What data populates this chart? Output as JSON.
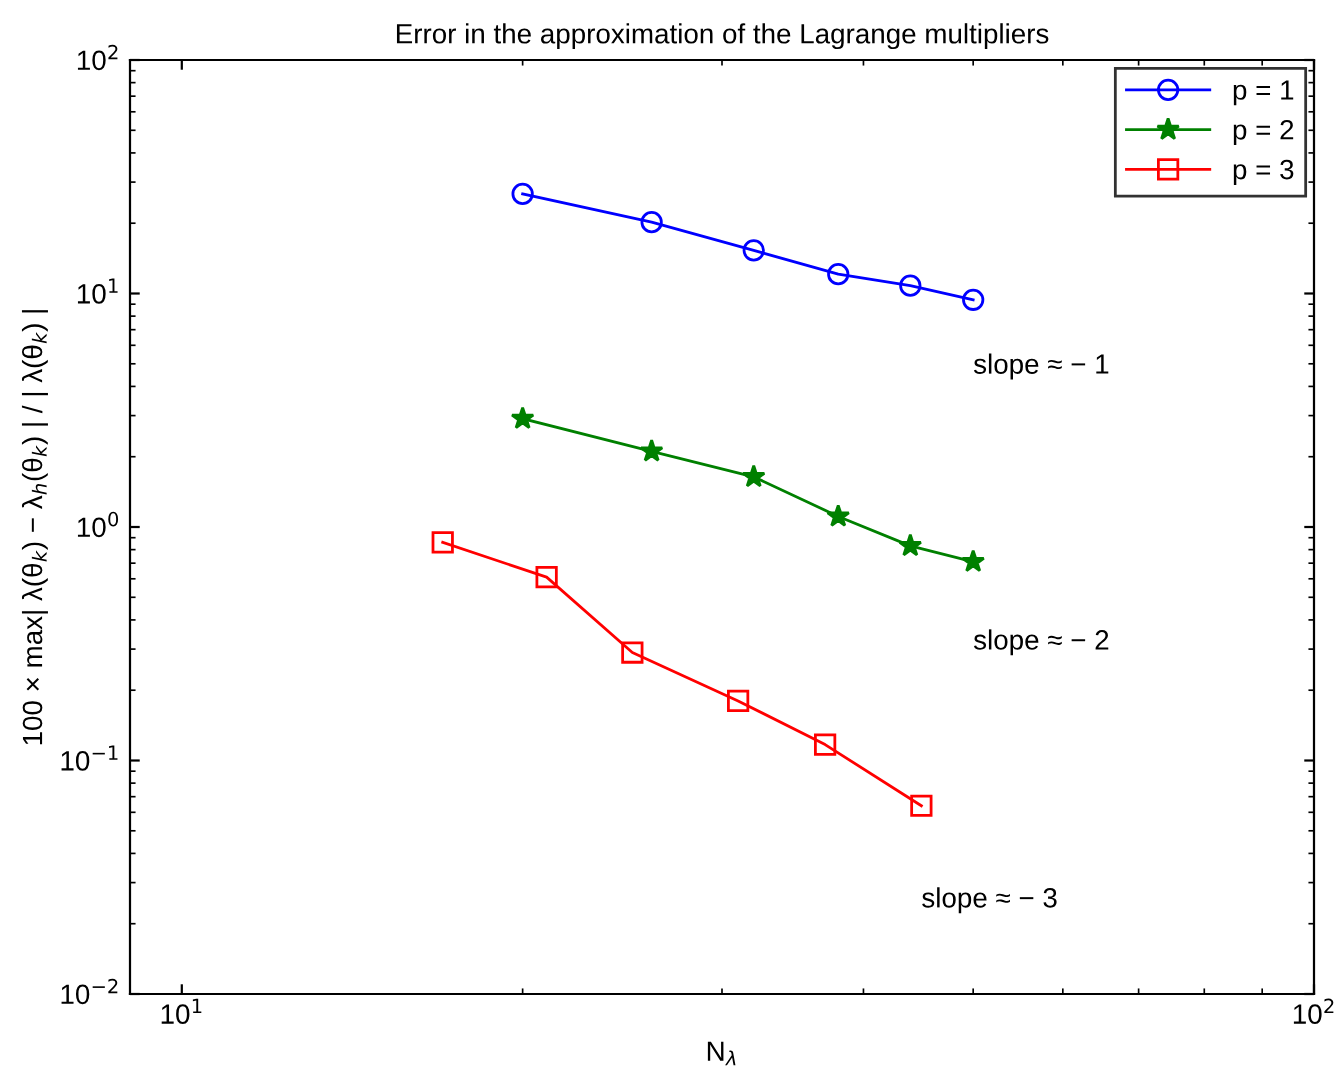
{
  "chart_data": {
    "type": "line",
    "title": "Error in the approximation of the Lagrange multipliers",
    "xlabel": "N$_{λ}$",
    "ylabel": "100 × max| λ(θ$_{k}$) − λ$_{h}$(θ$_{k}$) | / | λ(θ$_{k}$) |",
    "log": "xy",
    "xlim": [
      9,
      100
    ],
    "ylim": [
      0.01,
      100
    ],
    "xticks": [
      {
        "value": 10,
        "label": "10$^{1}$"
      },
      {
        "value": 100,
        "label": "10$^{2}$"
      }
    ],
    "yticks": [
      {
        "value": 0.01,
        "label": "10$^{−2}$"
      },
      {
        "value": 0.1,
        "label": "10$^{−1}$"
      },
      {
        "value": 1,
        "label": "10$^{0}$"
      },
      {
        "value": 10,
        "label": "10$^{1}$"
      },
      {
        "value": 100,
        "label": "10$^{2}$"
      }
    ],
    "grid": false,
    "legend": "top right",
    "line_style": "solid",
    "series": [
      {
        "name": "p = 1",
        "color": "#0000ff",
        "marker": "circle",
        "x": [
          20,
          26,
          32,
          38,
          44,
          50
        ],
        "values": [
          26.7,
          20.2,
          15.3,
          12.1,
          10.8,
          9.4
        ]
      },
      {
        "name": "p = 2",
        "color": "#008000",
        "marker": "star",
        "x": [
          20,
          26,
          32,
          38,
          44,
          50
        ],
        "values": [
          2.91,
          2.11,
          1.64,
          1.11,
          0.83,
          0.71
        ]
      },
      {
        "name": "p = 3",
        "color": "#ff0000",
        "marker": "square",
        "x": [
          17,
          21,
          25,
          31,
          37,
          45
        ],
        "values": [
          0.86,
          0.61,
          0.29,
          0.18,
          0.117,
          0.064
        ]
      }
    ],
    "annotations": [
      "slope ≈ − 1",
      "slope ≈ − 2",
      "slope ≈ − 3"
    ]
  }
}
